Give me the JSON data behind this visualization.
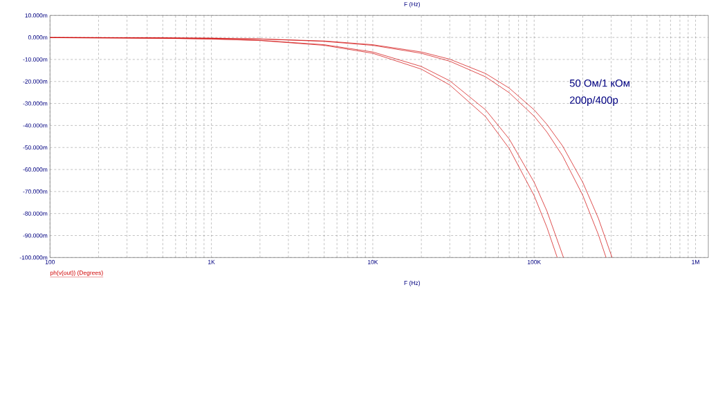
{
  "chart_data": {
    "type": "line",
    "title": "F (Hz)",
    "xlabel": "F (Hz)",
    "annotations": [
      "ph(v(out)) (Degrees)",
      "50 Ом/1 кОм",
      "200p/400p"
    ],
    "log": "x",
    "grid": true,
    "marker": "none",
    "line_style": "solid",
    "xlim": [
      100,
      1200000
    ],
    "xticks": [
      100,
      {
        "value": 1000,
        "label": "1K"
      },
      {
        "value": 10000,
        "label": "10K"
      },
      {
        "value": 100000,
        "label": "100K"
      },
      {
        "value": 1000000,
        "label": "1M"
      }
    ],
    "ylim": [
      -100,
      10
    ],
    "yticks": [
      {
        "value": -100,
        "label": "-100.000m"
      },
      {
        "value": -90,
        "label": "-90.000m"
      },
      {
        "value": -80,
        "label": "-80.000m"
      },
      {
        "value": -70,
        "label": "-70.000m"
      },
      {
        "value": -60,
        "label": "-60.000m"
      },
      {
        "value": -50,
        "label": "-50.000m"
      },
      {
        "value": -40,
        "label": "-40.000m"
      },
      {
        "value": -30,
        "label": "-30.000m"
      },
      {
        "value": -20,
        "label": "-20.000m"
      },
      {
        "value": -10,
        "label": "-10.000m"
      },
      {
        "value": 0,
        "label": "0.000m"
      },
      {
        "value": 10,
        "label": "10.000m"
      }
    ],
    "series": [
      {
        "color": "#d00000",
        "x": [
          100,
          500,
          1000,
          2000,
          5000,
          10000,
          20000,
          30000,
          50000,
          70000,
          100000,
          120000,
          139000
        ],
        "values": [
          -0.1,
          -0.4,
          -0.7,
          -1.4,
          -3.6,
          -7.2,
          -14.4,
          -21.6,
          -36.0,
          -50.4,
          -71.9,
          -86.3,
          -100
        ]
      },
      {
        "color": "#d00000",
        "x": [
          100,
          500,
          1000,
          2000,
          5000,
          10000,
          20000,
          30000,
          50000,
          70000,
          100000,
          120000,
          152000
        ],
        "values": [
          -0.1,
          -0.3,
          -0.7,
          -1.3,
          -3.3,
          -6.6,
          -13.2,
          -19.7,
          -32.9,
          -46.1,
          -65.8,
          -78.9,
          -100
        ]
      },
      {
        "color": "#d00000",
        "x": [
          100,
          500,
          1000,
          2000,
          5000,
          10000,
          20000,
          30000,
          50000,
          70000,
          100000,
          120000,
          150000,
          200000,
          250000,
          279000
        ],
        "values": [
          0,
          -0.2,
          -0.4,
          -0.7,
          -1.8,
          -3.6,
          -7.2,
          -10.8,
          -17.9,
          -25.1,
          -35.8,
          -43.0,
          -53.8,
          -71.7,
          -89.6,
          -100
        ]
      },
      {
        "color": "#d00000",
        "x": [
          100,
          500,
          1000,
          2000,
          5000,
          10000,
          20000,
          30000,
          50000,
          70000,
          100000,
          120000,
          150000,
          200000,
          250000,
          304000
        ],
        "values": [
          0,
          -0.2,
          -0.3,
          -0.7,
          -1.6,
          -3.3,
          -6.6,
          -9.9,
          -16.4,
          -23.0,
          -32.9,
          -39.5,
          -49.3,
          -65.8,
          -82.2,
          -100
        ]
      }
    ]
  }
}
